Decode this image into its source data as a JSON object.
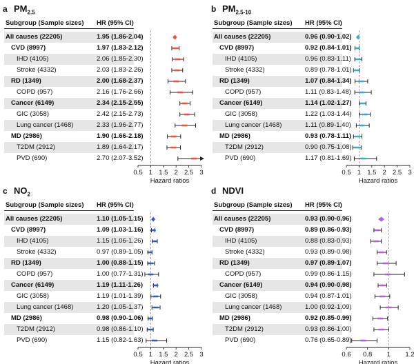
{
  "headers": {
    "subgroup": "Subgroup (Sample sizes)",
    "hr": "HR (95% CI)"
  },
  "chart_data": [
    {
      "type": "forest",
      "letter": "a",
      "title_main": "PM",
      "title_sub": "2.5",
      "color": "#e8553a",
      "xlabel": "Hazard ratios",
      "xlim": [
        0.5,
        3
      ],
      "ref": 1,
      "ticks": [
        "0.5",
        "1",
        "1.5",
        "2",
        "2.5",
        "3"
      ],
      "tickvals": [
        0.5,
        1,
        1.5,
        2,
        2.5,
        3
      ],
      "rows": [
        {
          "label": "All causes (22205)",
          "ci": "1.95 (1.86-2.04)",
          "hr": 1.95,
          "lo": 1.86,
          "hi": 2.04,
          "level": 0,
          "bold": true,
          "shade": true,
          "diamond": true
        },
        {
          "label": "CVD (8997)",
          "ci": "1.97 (1.83-2.12)",
          "hr": 1.97,
          "lo": 1.83,
          "hi": 2.12,
          "level": 1,
          "bold": true,
          "shade": false
        },
        {
          "label": "IHD (4105)",
          "ci": "2.06 (1.85-2.30)",
          "hr": 2.06,
          "lo": 1.85,
          "hi": 2.3,
          "level": 2,
          "bold": false,
          "shade": true
        },
        {
          "label": "Stroke (4332)",
          "ci": "2.03 (1.83-2.26)",
          "hr": 2.03,
          "lo": 1.83,
          "hi": 2.26,
          "level": 2,
          "bold": false,
          "shade": false
        },
        {
          "label": "RD (1349)",
          "ci": "2.00 (1.68-2.37)",
          "hr": 2.0,
          "lo": 1.68,
          "hi": 2.37,
          "level": 1,
          "bold": true,
          "shade": true
        },
        {
          "label": "COPD (957)",
          "ci": "2.16 (1.76-2.66)",
          "hr": 2.16,
          "lo": 1.76,
          "hi": 2.66,
          "level": 2,
          "bold": false,
          "shade": false
        },
        {
          "label": "Cancer (6149)",
          "ci": "2.34 (2.15-2.55)",
          "hr": 2.34,
          "lo": 2.15,
          "hi": 2.55,
          "level": 1,
          "bold": true,
          "shade": true
        },
        {
          "label": "GIC (3058)",
          "ci": "2.42 (2.15-2.73)",
          "hr": 2.42,
          "lo": 2.15,
          "hi": 2.73,
          "level": 2,
          "bold": false,
          "shade": false
        },
        {
          "label": "Lung cancer (1468)",
          "ci": "2.33 (1.96-2.77)",
          "hr": 2.33,
          "lo": 1.96,
          "hi": 2.77,
          "level": 2,
          "bold": false,
          "shade": true
        },
        {
          "label": "MD (2986)",
          "ci": "1.90 (1.66-2.18)",
          "hr": 1.9,
          "lo": 1.66,
          "hi": 2.18,
          "level": 1,
          "bold": true,
          "shade": false
        },
        {
          "label": "T2DM (2912)",
          "ci": "1.89 (1.64-2.17)",
          "hr": 1.89,
          "lo": 1.64,
          "hi": 2.17,
          "level": 2,
          "bold": false,
          "shade": true
        },
        {
          "label": "PVD (690)",
          "ci": "2.70 (2.07-3.52)",
          "hr": 2.7,
          "lo": 2.07,
          "hi": 3.52,
          "level": 2,
          "bold": false,
          "shade": false,
          "arrow": true
        }
      ]
    },
    {
      "type": "forest",
      "letter": "b",
      "title_main": "PM",
      "title_sub": "2.5-10",
      "color": "#3fa9c9",
      "xlabel": "Hazard ratios",
      "xlim": [
        0.5,
        3
      ],
      "ref": 1,
      "ticks": [
        "0.5",
        "1",
        "1.5",
        "2",
        "2.5",
        "3"
      ],
      "tickvals": [
        0.5,
        1,
        1.5,
        2,
        2.5,
        3
      ],
      "rows": [
        {
          "label": "All causes (22205)",
          "ci": "0.96 (0.90-1.02)",
          "hr": 0.96,
          "lo": 0.9,
          "hi": 1.02,
          "level": 0,
          "bold": true,
          "shade": true,
          "diamond": true
        },
        {
          "label": "CVD (8997)",
          "ci": "0.92 (0.84-1.01)",
          "hr": 0.92,
          "lo": 0.84,
          "hi": 1.01,
          "level": 1,
          "bold": true,
          "shade": false
        },
        {
          "label": "IHD (4105)",
          "ci": "0.96 (0.83-1.11)",
          "hr": 0.96,
          "lo": 0.83,
          "hi": 1.11,
          "level": 2,
          "bold": false,
          "shade": true
        },
        {
          "label": "Stroke (4332)",
          "ci": "0.89 (0.78-1.01)",
          "hr": 0.89,
          "lo": 0.78,
          "hi": 1.01,
          "level": 2,
          "bold": false,
          "shade": false
        },
        {
          "label": "RD (1349)",
          "ci": "1.07 (0.84-1.34)",
          "hr": 1.07,
          "lo": 0.84,
          "hi": 1.34,
          "level": 1,
          "bold": true,
          "shade": true
        },
        {
          "label": "COPD (957)",
          "ci": "1.11 (0.83-1.48)",
          "hr": 1.11,
          "lo": 0.83,
          "hi": 1.48,
          "level": 2,
          "bold": false,
          "shade": false
        },
        {
          "label": "Cancer (6149)",
          "ci": "1.14 (1.02-1.27)",
          "hr": 1.14,
          "lo": 1.02,
          "hi": 1.27,
          "level": 1,
          "bold": true,
          "shade": true
        },
        {
          "label": "GIC (3058)",
          "ci": "1.22 (1.03-1.44)",
          "hr": 1.22,
          "lo": 1.03,
          "hi": 1.44,
          "level": 2,
          "bold": false,
          "shade": false
        },
        {
          "label": "Lung cancer (1468)",
          "ci": "1.11 (0.89-1.40)",
          "hr": 1.11,
          "lo": 0.89,
          "hi": 1.4,
          "level": 2,
          "bold": false,
          "shade": true
        },
        {
          "label": "MD (2986)",
          "ci": "0.93 (0.78-1.11)",
          "hr": 0.93,
          "lo": 0.78,
          "hi": 1.11,
          "level": 1,
          "bold": true,
          "shade": false
        },
        {
          "label": "T2DM (2912)",
          "ci": "0.90 (0.75-1.08)",
          "hr": 0.9,
          "lo": 0.75,
          "hi": 1.08,
          "level": 2,
          "bold": false,
          "shade": true
        },
        {
          "label": "PVD (690)",
          "ci": "1.17 (0.81-1.69)",
          "hr": 1.17,
          "lo": 0.81,
          "hi": 1.69,
          "level": 2,
          "bold": false,
          "shade": false
        }
      ]
    },
    {
      "type": "forest",
      "letter": "c",
      "title_main": "NO",
      "title_sub": "2",
      "color": "#3d5aa8",
      "xlabel": "Hazard ratios",
      "xlim": [
        0.5,
        3
      ],
      "ref": 1,
      "ticks": [
        "0.5",
        "1",
        "1.5",
        "2",
        "2.5",
        "3"
      ],
      "tickvals": [
        0.5,
        1,
        1.5,
        2,
        2.5,
        3
      ],
      "rows": [
        {
          "label": "All causes (22205)",
          "ci": "1.10 (1.05-1.15)",
          "hr": 1.1,
          "lo": 1.05,
          "hi": 1.15,
          "level": 0,
          "bold": true,
          "shade": true,
          "diamond": true
        },
        {
          "label": "CVD (8997)",
          "ci": "1.09 (1.03-1.16)",
          "hr": 1.09,
          "lo": 1.03,
          "hi": 1.16,
          "level": 1,
          "bold": true,
          "shade": false
        },
        {
          "label": "IHD (4105)",
          "ci": "1.15 (1.06-1.26)",
          "hr": 1.15,
          "lo": 1.06,
          "hi": 1.26,
          "level": 2,
          "bold": false,
          "shade": true
        },
        {
          "label": "Stroke (4332)",
          "ci": "0.97 (0.89-1.05)",
          "hr": 0.97,
          "lo": 0.89,
          "hi": 1.05,
          "level": 2,
          "bold": false,
          "shade": false
        },
        {
          "label": "RD (1349)",
          "ci": "1.00 (0.88-1.15)",
          "hr": 1.0,
          "lo": 0.88,
          "hi": 1.15,
          "level": 1,
          "bold": true,
          "shade": true
        },
        {
          "label": "COPD (957)",
          "ci": "1.00 (0.77-1.31)",
          "hr": 1.0,
          "lo": 0.77,
          "hi": 1.31,
          "level": 2,
          "bold": false,
          "shade": false
        },
        {
          "label": "Cancer (6149)",
          "ci": "1.19 (1.11-1.26)",
          "hr": 1.19,
          "lo": 1.11,
          "hi": 1.26,
          "level": 1,
          "bold": true,
          "shade": true
        },
        {
          "label": "GIC (3058)",
          "ci": "1.19 (1.01-1.39)",
          "hr": 1.19,
          "lo": 1.01,
          "hi": 1.39,
          "level": 2,
          "bold": false,
          "shade": false
        },
        {
          "label": "Lung cancer (1468)",
          "ci": "1.20 (1.05-1.37)",
          "hr": 1.2,
          "lo": 1.05,
          "hi": 1.37,
          "level": 2,
          "bold": false,
          "shade": true
        },
        {
          "label": "MD (2986)",
          "ci": "0.98 (0.90-1.06)",
          "hr": 0.98,
          "lo": 0.9,
          "hi": 1.06,
          "level": 1,
          "bold": true,
          "shade": false
        },
        {
          "label": "T2DM (2912)",
          "ci": "0.98 (0.86-1.10)",
          "hr": 0.98,
          "lo": 0.86,
          "hi": 1.1,
          "level": 2,
          "bold": false,
          "shade": true
        },
        {
          "label": "PVD (690)",
          "ci": "1.15 (0.82-1.63)",
          "hr": 1.15,
          "lo": 0.82,
          "hi": 1.63,
          "level": 2,
          "bold": false,
          "shade": false
        }
      ]
    },
    {
      "type": "forest",
      "letter": "d",
      "title_main": "NDVI",
      "title_sub": "",
      "color": "#b061d6",
      "xlabel": "Hazard ratios",
      "xlim": [
        0.6,
        1.2
      ],
      "ref": 1,
      "ticks": [
        "0.6",
        "0.8",
        "1",
        "1.2"
      ],
      "tickvals": [
        0.6,
        0.8,
        1,
        1.2
      ],
      "rows": [
        {
          "label": "All causes (22205)",
          "ci": "0.93 (0.90-0.96)",
          "hr": 0.93,
          "lo": 0.9,
          "hi": 0.96,
          "level": 0,
          "bold": true,
          "shade": true,
          "diamond": true
        },
        {
          "label": "CVD (8997)",
          "ci": "0.89 (0.86-0.93)",
          "hr": 0.89,
          "lo": 0.86,
          "hi": 0.93,
          "level": 1,
          "bold": true,
          "shade": false
        },
        {
          "label": "IHD (4105)",
          "ci": "0.88 (0.83-0.93)",
          "hr": 0.88,
          "lo": 0.83,
          "hi": 0.93,
          "level": 2,
          "bold": false,
          "shade": true
        },
        {
          "label": "Stroke (4332)",
          "ci": "0.93 (0.89-0.98)",
          "hr": 0.93,
          "lo": 0.89,
          "hi": 0.98,
          "level": 2,
          "bold": false,
          "shade": false
        },
        {
          "label": "RD (1349)",
          "ci": "0.97 (0.89-1.07)",
          "hr": 0.97,
          "lo": 0.89,
          "hi": 1.07,
          "level": 1,
          "bold": true,
          "shade": true
        },
        {
          "label": "COPD (957)",
          "ci": "0.99 (0.86-1.15)",
          "hr": 0.99,
          "lo": 0.86,
          "hi": 1.15,
          "level": 2,
          "bold": false,
          "shade": false
        },
        {
          "label": "Cancer (6149)",
          "ci": "0.94 (0.90-0.98)",
          "hr": 0.94,
          "lo": 0.9,
          "hi": 0.98,
          "level": 1,
          "bold": true,
          "shade": true
        },
        {
          "label": "GIC (3058)",
          "ci": "0.94 (0.87-1.01)",
          "hr": 0.94,
          "lo": 0.87,
          "hi": 1.01,
          "level": 2,
          "bold": false,
          "shade": false
        },
        {
          "label": "Lung cancer (1468)",
          "ci": "1.00 (0.92-1.09)",
          "hr": 1.0,
          "lo": 0.92,
          "hi": 1.09,
          "level": 2,
          "bold": false,
          "shade": true
        },
        {
          "label": "MD (2986)",
          "ci": "0.92 (0.85-0.99)",
          "hr": 0.92,
          "lo": 0.85,
          "hi": 0.99,
          "level": 1,
          "bold": true,
          "shade": false
        },
        {
          "label": "T2DM (2912)",
          "ci": "0.93 (0.86-1.00)",
          "hr": 0.93,
          "lo": 0.86,
          "hi": 1.0,
          "level": 2,
          "bold": false,
          "shade": true
        },
        {
          "label": "PVD (690)",
          "ci": "0.76 (0.65-0.89)",
          "hr": 0.76,
          "lo": 0.65,
          "hi": 0.89,
          "level": 2,
          "bold": false,
          "shade": false
        }
      ]
    }
  ]
}
